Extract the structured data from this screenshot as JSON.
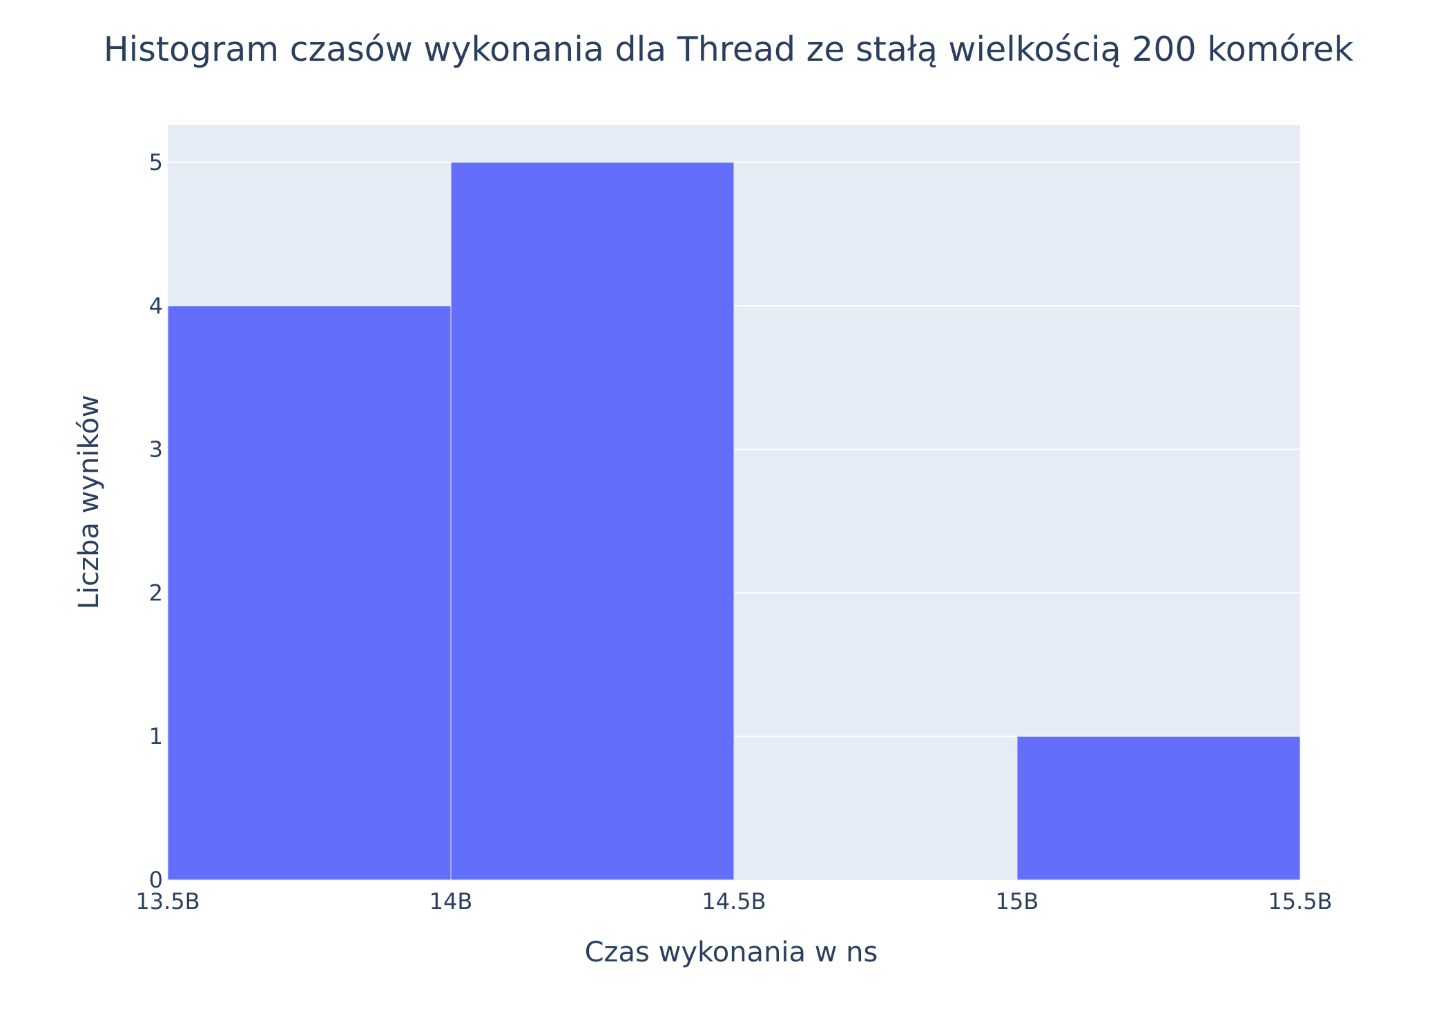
{
  "chart_data": {
    "type": "bar",
    "title": "Histogram czasów wykonania dla Thread ze stałą wielkością 200 komórek",
    "xlabel": "Czas wykonania w ns",
    "ylabel": "Liczba wyników",
    "bins": [
      {
        "x0": 13500000000,
        "x1": 14000000000,
        "count": 4
      },
      {
        "x0": 14000000000,
        "x1": 14500000000,
        "count": 5
      },
      {
        "x0": 14500000000,
        "x1": 15000000000,
        "count": 0
      },
      {
        "x0": 15000000000,
        "x1": 15500000000,
        "count": 1
      }
    ],
    "xlim": [
      13500000000,
      15500000000
    ],
    "ylim": [
      0,
      5.26
    ],
    "x_ticks": [
      {
        "value": 13500000000,
        "label": "13.5B"
      },
      {
        "value": 14000000000,
        "label": "14B"
      },
      {
        "value": 14500000000,
        "label": "14.5B"
      },
      {
        "value": 15000000000,
        "label": "15B"
      },
      {
        "value": 15500000000,
        "label": "15.5B"
      }
    ],
    "y_ticks": [
      {
        "value": 0,
        "label": "0"
      },
      {
        "value": 1,
        "label": "1"
      },
      {
        "value": 2,
        "label": "2"
      },
      {
        "value": 3,
        "label": "3"
      },
      {
        "value": 4,
        "label": "4"
      },
      {
        "value": 5,
        "label": "5"
      }
    ],
    "grid": true,
    "colors": {
      "bar": "#636efa",
      "plot_background": "#e5ecf6",
      "gridline": "#ffffff",
      "text": "#2a3f5f"
    }
  }
}
